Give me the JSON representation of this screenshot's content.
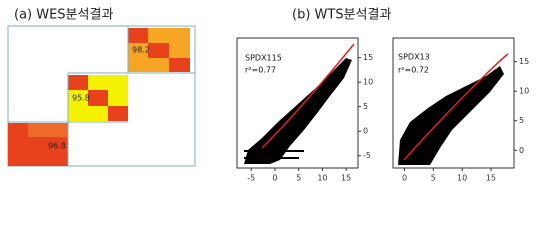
{
  "panel_a": {
    "title": "(a) WES분석결과",
    "cells": [
      "98.2",
      "95.8",
      "96.8"
    ]
  },
  "panel_b": {
    "title": "(b) WTS분석결과",
    "plots": [
      {
        "sample": "SPDX115",
        "r2": "r²=0.77",
        "xlim": [
          -8,
          17.5
        ],
        "ylim": [
          -7.5,
          19
        ],
        "xticks": [
          -5,
          0,
          5,
          10,
          15
        ],
        "yticks": [
          -5,
          0,
          5,
          10,
          15
        ]
      },
      {
        "sample": "SPDX13",
        "r2": "r²=0.72",
        "xlim": [
          -2,
          19
        ],
        "ylim": [
          -3,
          19
        ],
        "xticks": [
          0,
          5,
          10,
          15
        ],
        "yticks": [
          0,
          5,
          10,
          15
        ]
      }
    ]
  }
}
